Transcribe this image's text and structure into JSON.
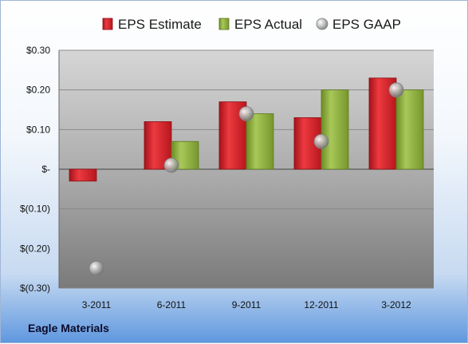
{
  "company": "Eagle Materials",
  "legend": [
    "EPS Estimate",
    "EPS Actual",
    "EPS GAAP"
  ],
  "colors": {
    "estimate": "#d42027",
    "actual": "#8db03c",
    "gaap": "#b5b5b5"
  },
  "chart_data": {
    "type": "bar",
    "categories": [
      "3-2011",
      "6-2011",
      "9-2011",
      "12-2011",
      "3-2012"
    ],
    "series": [
      {
        "name": "EPS Estimate",
        "kind": "bar",
        "values": [
          -0.03,
          0.12,
          0.17,
          0.13,
          0.23
        ]
      },
      {
        "name": "EPS Actual",
        "kind": "bar",
        "values": [
          null,
          0.07,
          0.14,
          0.2,
          0.2
        ]
      },
      {
        "name": "EPS GAAP",
        "kind": "marker",
        "values": [
          -0.25,
          0.01,
          0.14,
          0.07,
          0.2
        ]
      }
    ],
    "ylim": [
      -0.3,
      0.3
    ],
    "yticks": [
      0.3,
      0.2,
      0.1,
      0.0,
      -0.1,
      -0.2,
      -0.3
    ],
    "ytick_labels": [
      "$0.30",
      "$0.20",
      "$0.10",
      "$-",
      "$(0.10)",
      "$(0.20)",
      "$(0.30)"
    ],
    "grid": true,
    "legend_position": "top"
  }
}
